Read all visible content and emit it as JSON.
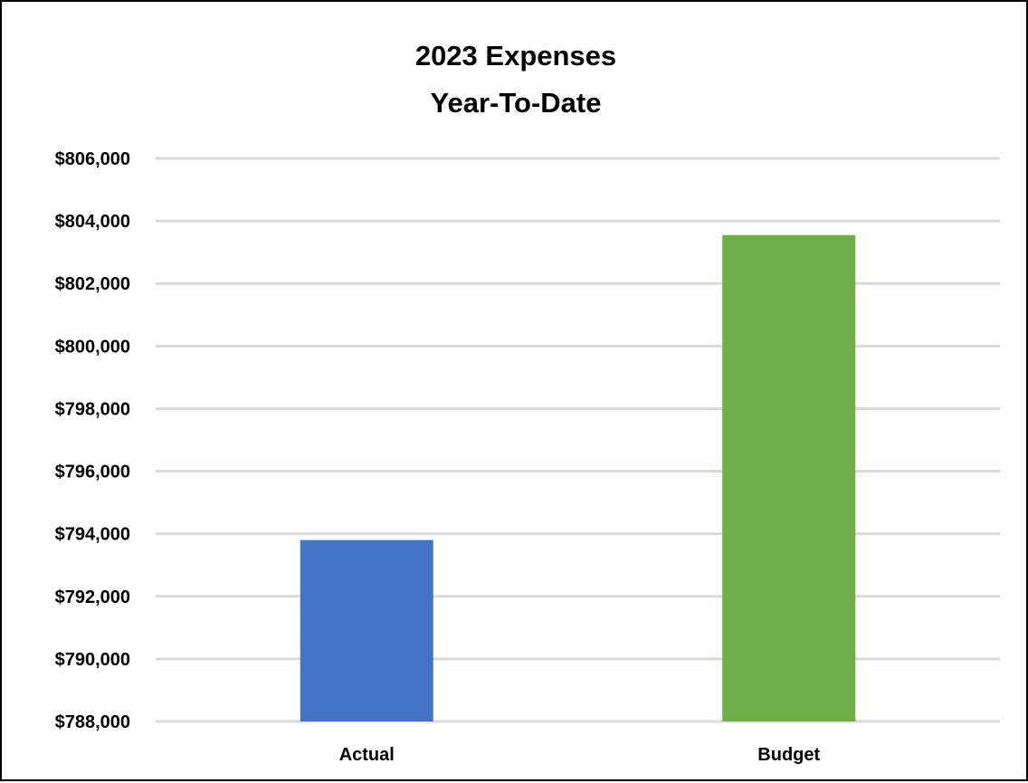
{
  "chart_data": {
    "type": "bar",
    "title_lines": [
      "2023 Expenses",
      "Year-To-Date"
    ],
    "xlabel": "",
    "ylabel": "",
    "categories": [
      "Actual",
      "Budget"
    ],
    "values": [
      793800,
      803550
    ],
    "bar_colors": [
      "#4472C4",
      "#70AD47"
    ],
    "ylim": [
      788000,
      806000
    ],
    "yticks": [
      788000,
      790000,
      792000,
      794000,
      796000,
      798000,
      800000,
      802000,
      804000,
      806000
    ],
    "ytick_labels": [
      "$788,000",
      "$790,000",
      "$792,000",
      "$794,000",
      "$796,000",
      "$798,000",
      "$800,000",
      "$802,000",
      "$804,000",
      "$806,000"
    ],
    "grid": true,
    "grid_color": "#D9D9D9",
    "legend": "none"
  }
}
